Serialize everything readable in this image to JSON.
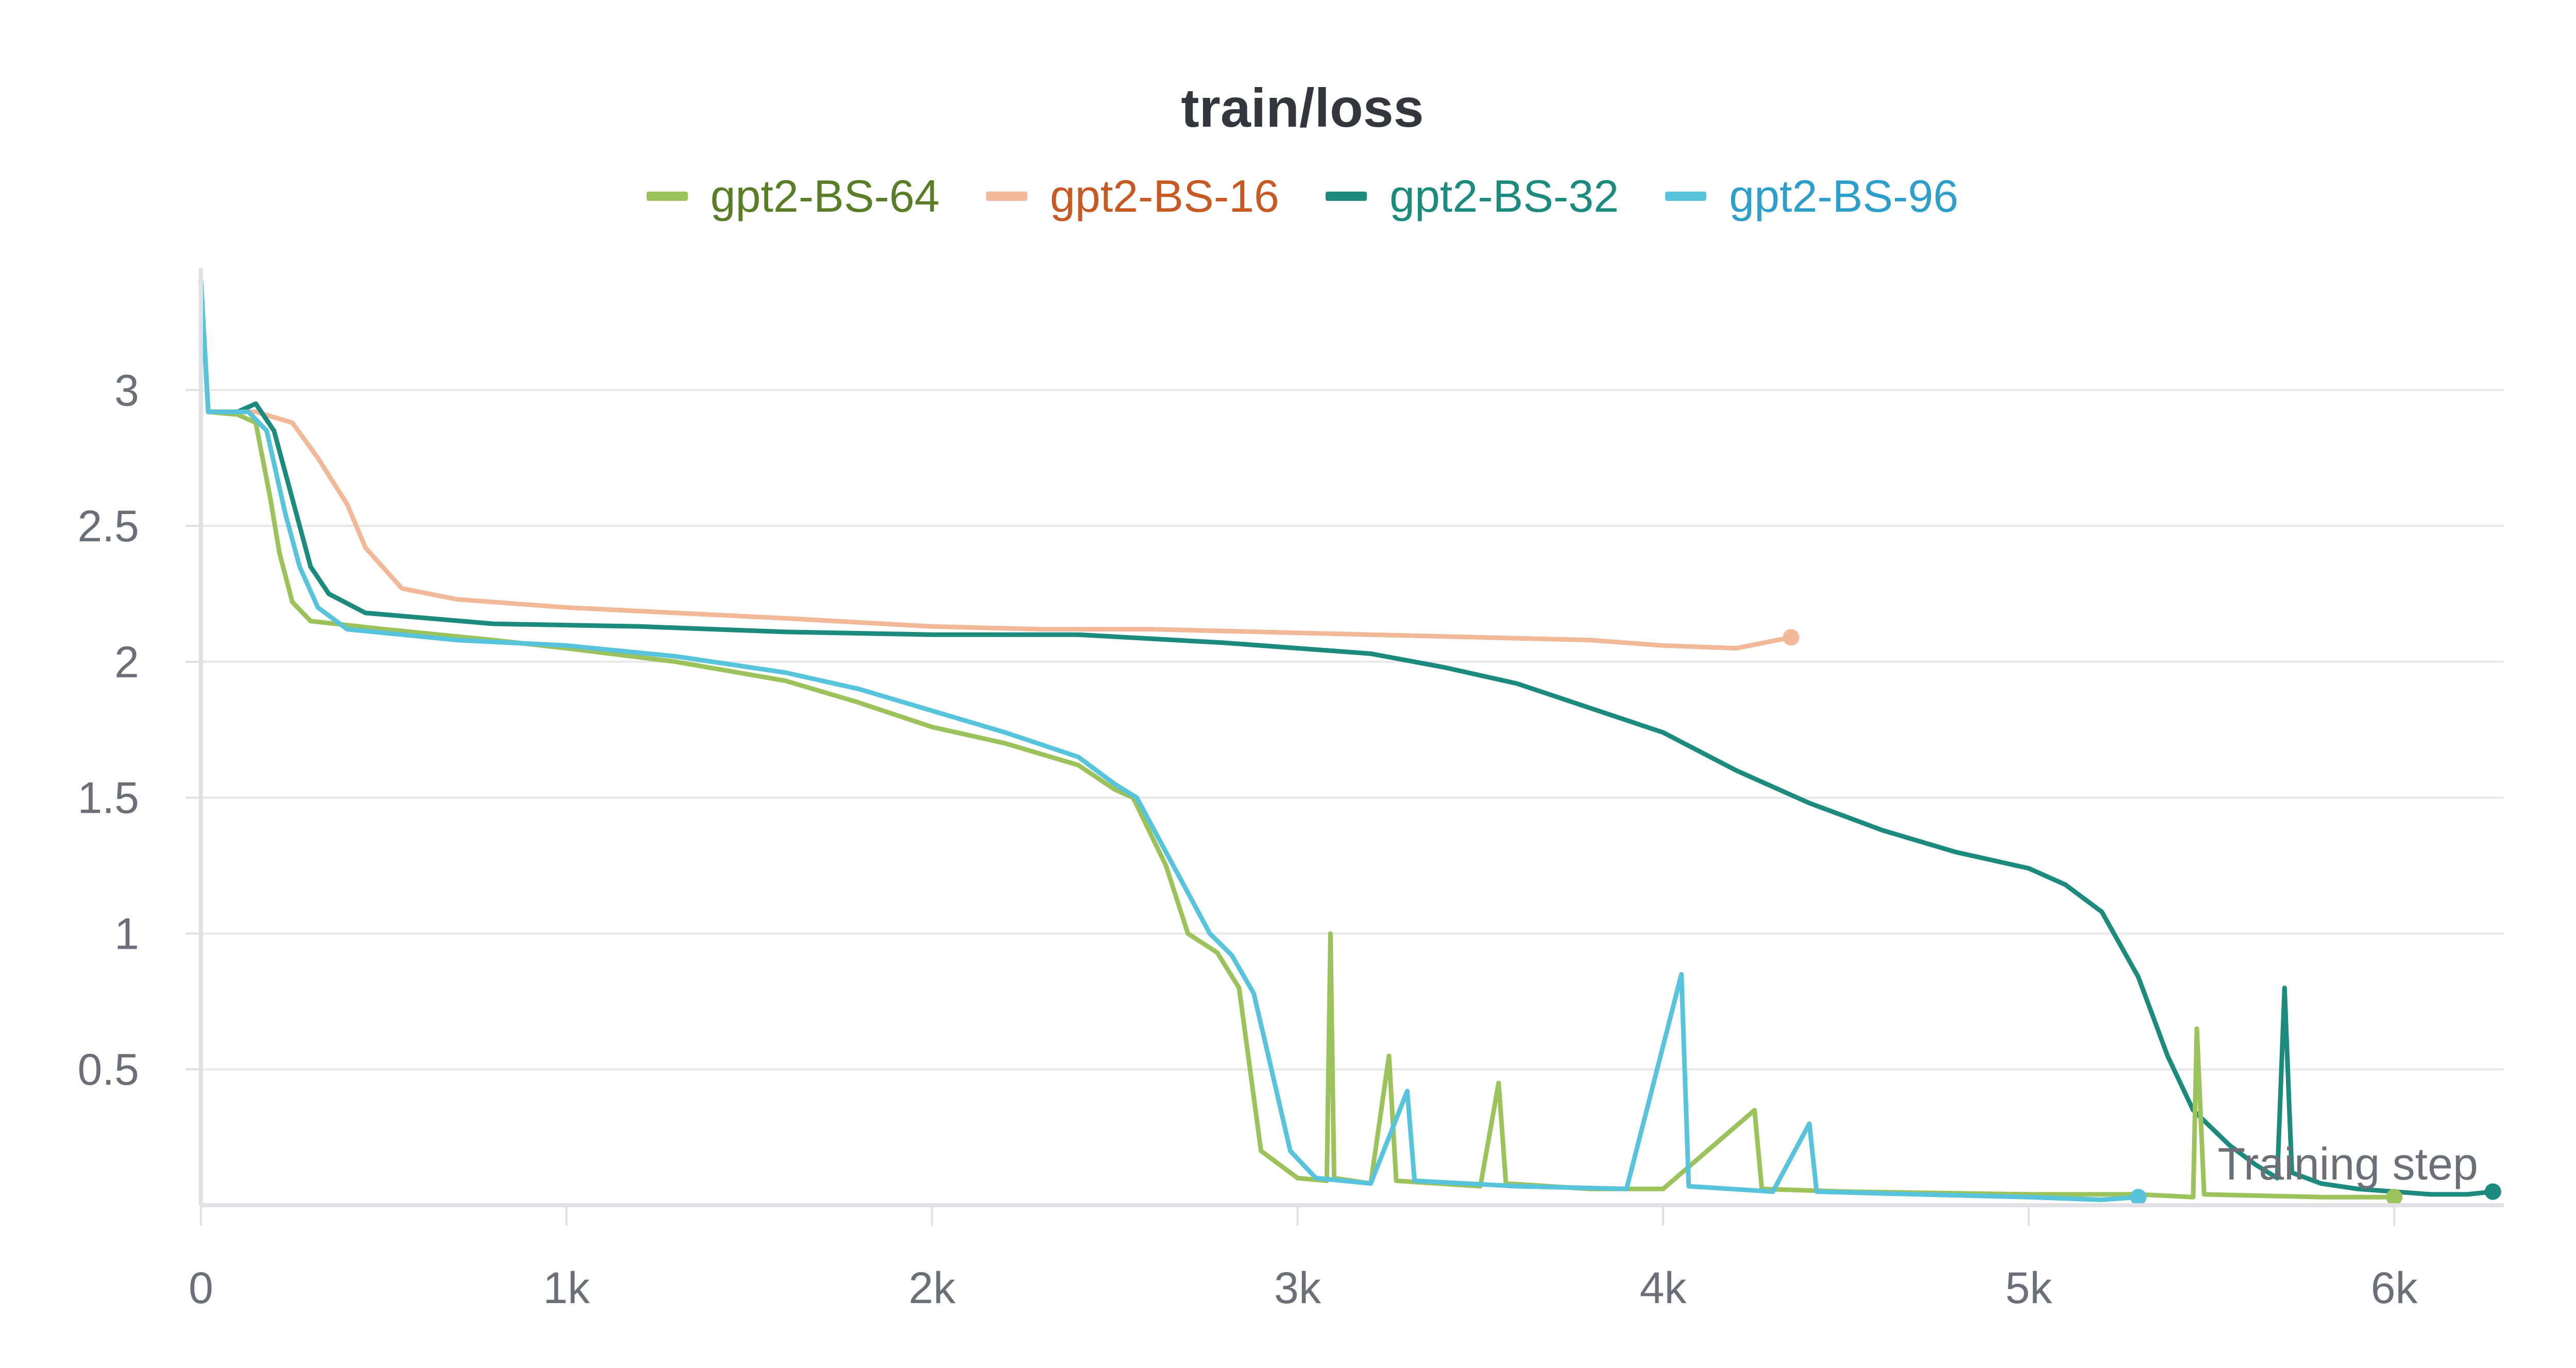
{
  "chart_data": {
    "type": "line",
    "title": "train/loss",
    "xlabel": "Training step",
    "ylabel": "",
    "xlim": [
      0,
      6300
    ],
    "ylim": [
      0,
      3.45
    ],
    "x_ticks": [
      0,
      1000,
      2000,
      3000,
      4000,
      5000,
      6000
    ],
    "x_tick_labels": [
      "0",
      "1k",
      "2k",
      "3k",
      "4k",
      "5k",
      "6k"
    ],
    "y_ticks": [
      0.5,
      1,
      1.5,
      2,
      2.5,
      3
    ],
    "y_tick_labels": [
      "0.5",
      "1",
      "1.5",
      "2",
      "2.5",
      "3"
    ],
    "grid": true,
    "legend_position": "top-center",
    "series": [
      {
        "name": "gpt2-BS-64",
        "color": "#9cc35b",
        "text_color": "#5a7d27",
        "points": [
          [
            0,
            3.4
          ],
          [
            20,
            2.92
          ],
          [
            100,
            2.91
          ],
          [
            150,
            2.88
          ],
          [
            190,
            2.6
          ],
          [
            215,
            2.4
          ],
          [
            250,
            2.22
          ],
          [
            300,
            2.15
          ],
          [
            500,
            2.12
          ],
          [
            800,
            2.08
          ],
          [
            1000,
            2.05
          ],
          [
            1300,
            2.0
          ],
          [
            1600,
            1.93
          ],
          [
            1800,
            1.85
          ],
          [
            2000,
            1.76
          ],
          [
            2200,
            1.7
          ],
          [
            2400,
            1.62
          ],
          [
            2500,
            1.53
          ],
          [
            2550,
            1.5
          ],
          [
            2640,
            1.25
          ],
          [
            2700,
            1.0
          ],
          [
            2780,
            0.93
          ],
          [
            2840,
            0.8
          ],
          [
            2860,
            0.6
          ],
          [
            2900,
            0.2
          ],
          [
            3000,
            0.1
          ],
          [
            3080,
            0.09
          ],
          [
            3090,
            1.0
          ],
          [
            3100,
            0.1
          ],
          [
            3200,
            0.08
          ],
          [
            3250,
            0.55
          ],
          [
            3270,
            0.09
          ],
          [
            3500,
            0.07
          ],
          [
            3550,
            0.45
          ],
          [
            3570,
            0.08
          ],
          [
            3800,
            0.06
          ],
          [
            4000,
            0.06
          ],
          [
            4250,
            0.35
          ],
          [
            4270,
            0.06
          ],
          [
            4500,
            0.05
          ],
          [
            5000,
            0.04
          ],
          [
            5300,
            0.04
          ],
          [
            5450,
            0.03
          ],
          [
            5460,
            0.65
          ],
          [
            5480,
            0.04
          ],
          [
            5800,
            0.03
          ],
          [
            6000,
            0.03
          ]
        ]
      },
      {
        "name": "gpt2-BS-16",
        "color": "#f2b999",
        "text_color": "#c75a23",
        "points": [
          [
            0,
            3.4
          ],
          [
            20,
            2.92
          ],
          [
            150,
            2.92
          ],
          [
            250,
            2.88
          ],
          [
            320,
            2.75
          ],
          [
            400,
            2.58
          ],
          [
            450,
            2.42
          ],
          [
            550,
            2.27
          ],
          [
            700,
            2.23
          ],
          [
            1000,
            2.2
          ],
          [
            1300,
            2.18
          ],
          [
            1600,
            2.16
          ],
          [
            2000,
            2.13
          ],
          [
            2300,
            2.12
          ],
          [
            2600,
            2.12
          ],
          [
            2900,
            2.11
          ],
          [
            3200,
            2.1
          ],
          [
            3500,
            2.09
          ],
          [
            3800,
            2.08
          ],
          [
            4000,
            2.06
          ],
          [
            4200,
            2.05
          ],
          [
            4350,
            2.09
          ]
        ]
      },
      {
        "name": "gpt2-BS-32",
        "color": "#1c8a7c",
        "text_color": "#1c8a7c",
        "points": [
          [
            0,
            3.4
          ],
          [
            20,
            2.92
          ],
          [
            100,
            2.92
          ],
          [
            150,
            2.95
          ],
          [
            200,
            2.85
          ],
          [
            260,
            2.55
          ],
          [
            300,
            2.35
          ],
          [
            350,
            2.25
          ],
          [
            450,
            2.18
          ],
          [
            800,
            2.14
          ],
          [
            1200,
            2.13
          ],
          [
            1600,
            2.11
          ],
          [
            2000,
            2.1
          ],
          [
            2400,
            2.1
          ],
          [
            2800,
            2.07
          ],
          [
            3200,
            2.03
          ],
          [
            3400,
            1.98
          ],
          [
            3600,
            1.92
          ],
          [
            3800,
            1.83
          ],
          [
            4000,
            1.74
          ],
          [
            4200,
            1.6
          ],
          [
            4400,
            1.48
          ],
          [
            4600,
            1.38
          ],
          [
            4800,
            1.3
          ],
          [
            5000,
            1.24
          ],
          [
            5100,
            1.18
          ],
          [
            5200,
            1.08
          ],
          [
            5300,
            0.84
          ],
          [
            5380,
            0.55
          ],
          [
            5450,
            0.35
          ],
          [
            5550,
            0.22
          ],
          [
            5620,
            0.15
          ],
          [
            5680,
            0.1
          ],
          [
            5700,
            0.8
          ],
          [
            5720,
            0.12
          ],
          [
            5800,
            0.08
          ],
          [
            5900,
            0.06
          ],
          [
            6000,
            0.05
          ],
          [
            6100,
            0.04
          ],
          [
            6200,
            0.04
          ],
          [
            6270,
            0.05
          ]
        ]
      },
      {
        "name": "gpt2-BS-96",
        "color": "#57c4dc",
        "text_color": "#2e9fca",
        "points": [
          [
            0,
            3.4
          ],
          [
            20,
            2.92
          ],
          [
            130,
            2.92
          ],
          [
            180,
            2.85
          ],
          [
            230,
            2.55
          ],
          [
            270,
            2.35
          ],
          [
            320,
            2.2
          ],
          [
            400,
            2.12
          ],
          [
            700,
            2.08
          ],
          [
            1000,
            2.06
          ],
          [
            1300,
            2.02
          ],
          [
            1600,
            1.96
          ],
          [
            1800,
            1.9
          ],
          [
            2000,
            1.82
          ],
          [
            2200,
            1.74
          ],
          [
            2400,
            1.65
          ],
          [
            2500,
            1.55
          ],
          [
            2560,
            1.5
          ],
          [
            2640,
            1.3
          ],
          [
            2700,
            1.15
          ],
          [
            2760,
            1.0
          ],
          [
            2820,
            0.92
          ],
          [
            2880,
            0.78
          ],
          [
            2920,
            0.55
          ],
          [
            2980,
            0.2
          ],
          [
            3050,
            0.1
          ],
          [
            3200,
            0.08
          ],
          [
            3300,
            0.42
          ],
          [
            3320,
            0.09
          ],
          [
            3600,
            0.07
          ],
          [
            3900,
            0.06
          ],
          [
            4050,
            0.85
          ],
          [
            4070,
            0.07
          ],
          [
            4300,
            0.05
          ],
          [
            4400,
            0.3
          ],
          [
            4420,
            0.05
          ],
          [
            4700,
            0.04
          ],
          [
            5000,
            0.03
          ],
          [
            5200,
            0.02
          ],
          [
            5300,
            0.03
          ]
        ]
      }
    ]
  }
}
